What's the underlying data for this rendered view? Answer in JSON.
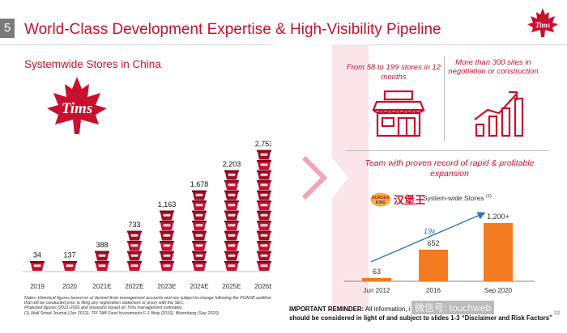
{
  "header": {
    "slide_number": "5",
    "title": "World-Class Development Expertise & High-Visibility Pipeline",
    "logo_text": "Tims"
  },
  "left": {
    "subtitle": "Systemwide Stores in China",
    "logo_text": "Tims",
    "notes": [
      "Notes: Historical figures based on or derived from management accounts and are subject to change following the PCAOB audit/review that will be conducted prior to filing any registration statement or proxy with the SEC.",
      "Projected figures (2021-2026 and onwards) based on Tims management estimates.",
      "(1)      Wall Street Journal (Jun 2012), TFI TAB Food Investments F-1 filing (2016), Bloomberg (Sep 2020)"
    ]
  },
  "chart_data": [
    {
      "type": "bar",
      "title": "Systemwide Stores in China",
      "categories": [
        "2019",
        "2020",
        "2021E",
        "2022E",
        "2023E",
        "2024E",
        "2025E",
        "2026E"
      ],
      "values": [
        34,
        137,
        388,
        733,
        1163,
        1678,
        2203,
        2753
      ],
      "value_labels": [
        "34",
        "137",
        "388",
        "733",
        "1,163",
        "1,678",
        "2,203",
        "2,753"
      ],
      "mark": "stacked coffee cups",
      "cup_counts": [
        1,
        1,
        2,
        4,
        6,
        8,
        10,
        12
      ],
      "xlabel": "",
      "ylabel": ""
    },
    {
      "type": "bar",
      "title": "System-wide Stores (1)",
      "categories": [
        "Jun 2012",
        "2016",
        "Sep 2020"
      ],
      "values": [
        63,
        652,
        1200
      ],
      "value_labels": [
        "63",
        "652",
        "1,200+"
      ],
      "annotation": "19x",
      "color": "#f47b20"
    }
  ],
  "right": {
    "stat_a": "From 58 to 199 stores in 12 months",
    "stat_b": "More than 300 sites in negotiation or construction",
    "team": "Team with proven record of rapid & profitable expansion",
    "bk_badge_top": "BURGER",
    "bk_badge_bottom": "KING",
    "bk_chinese": "汉堡王",
    "bk_legend": "System-wide Stores ",
    "bk_legend_sup": "(1)"
  },
  "footer": {
    "reminder_prefix": "IMPORTANT REMINDER:",
    "reminder_line1": " All information, i",
    "reminder_line2": "should be considered in light of and subject to slides 1-3 “Disclaimer and Risk Factors”",
    "watermark": "微信号: touchweb",
    "page_number": "22"
  },
  "colors": {
    "brand_red": "#c8102e",
    "bk_orange": "#f47b20",
    "arrow_blue": "#2e75b6"
  }
}
